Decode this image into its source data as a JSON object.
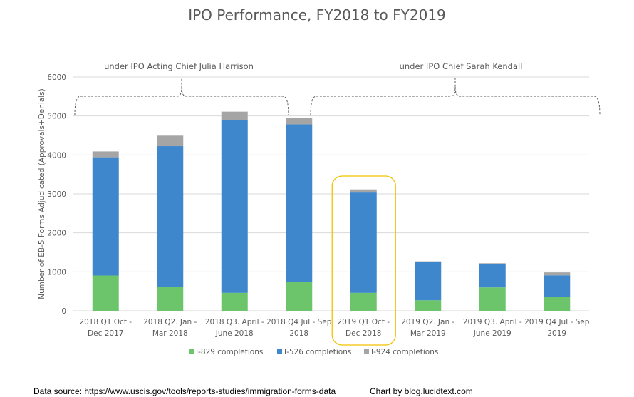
{
  "chart_data": {
    "type": "bar",
    "stacked": true,
    "title": "IPO Performance, FY2018 to FY2019",
    "ylabel": "Number of EB-5 Forms Adjudicated (Approvals+Denials)",
    "xlabel": "",
    "ylim": [
      0,
      6000
    ],
    "yticks": [
      0,
      1000,
      2000,
      3000,
      4000,
      5000,
      6000
    ],
    "grid": true,
    "legend_position": "bottom",
    "categories": [
      [
        "2018 Q1 Oct -",
        "Dec 2017"
      ],
      [
        "2018 Q2. Jan -",
        "Mar 2018"
      ],
      [
        "2018 Q3. April -",
        "June 2018"
      ],
      [
        "2018 Q4 Jul - Sep",
        "2018"
      ],
      [
        "2019  Q1  Oct -",
        "Dec 2018"
      ],
      [
        "2019 Q2. Jan -",
        "Mar 2019"
      ],
      [
        "2019 Q3. April -",
        "June 2019"
      ],
      [
        "2019 Q4 Jul - Sep",
        "2019"
      ]
    ],
    "series": [
      {
        "name": "I-829 completions",
        "color": "#6cc56a",
        "values": [
          905,
          610,
          460,
          735,
          460,
          270,
          600,
          350
        ]
      },
      {
        "name": "I-526 completions",
        "color": "#3f87cc",
        "values": [
          3035,
          3615,
          4440,
          4050,
          2575,
          995,
          605,
          560
        ]
      },
      {
        "name": "I-924 completions",
        "color": "#a5a5a5",
        "values": [
          150,
          270,
          210,
          155,
          80,
          5,
          15,
          75
        ]
      }
    ],
    "annotations": [
      {
        "text": "under IPO Acting Chief Julia Harrison",
        "spans_categories": [
          0,
          3
        ]
      },
      {
        "text": "under IPO Chief Sarah Kendall",
        "spans_categories": [
          4,
          7
        ]
      }
    ],
    "highlight": {
      "category_index": 4,
      "color": "#f2c200"
    }
  },
  "footer": {
    "source": "Data source: https://www.uscis.gov/tools/reports-studies/immigration-forms-data",
    "credit": "Chart by blog.lucidtext.com"
  }
}
